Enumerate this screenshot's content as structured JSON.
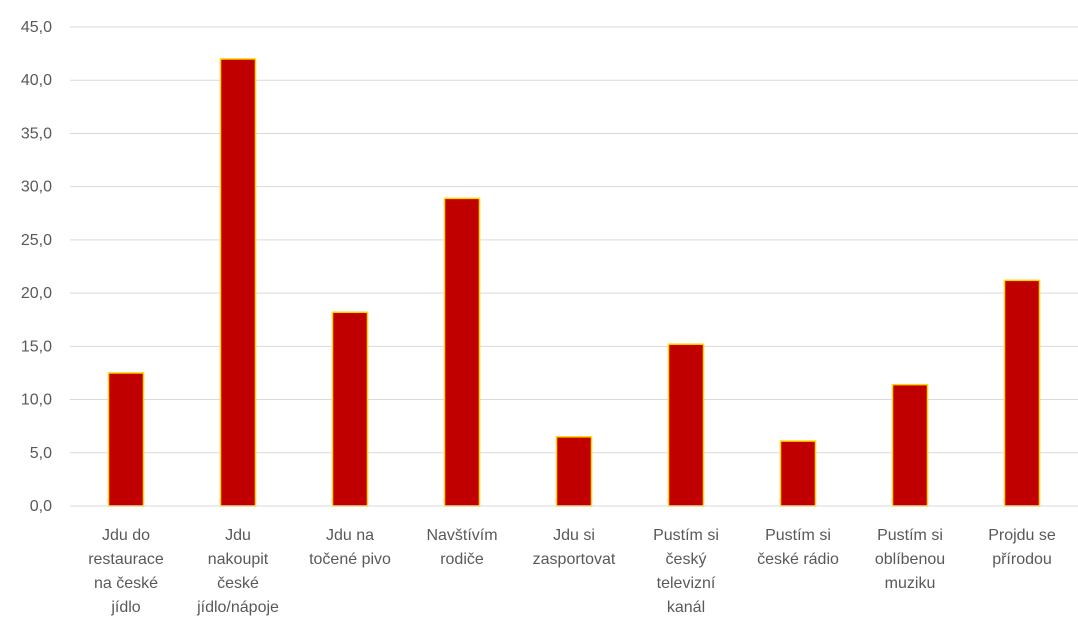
{
  "chart_data": {
    "type": "bar",
    "title": "",
    "xlabel": "",
    "ylabel": "",
    "ylim": [
      0,
      45
    ],
    "yticks": [
      "0,0",
      "5,0",
      "10,0",
      "15,0",
      "20,0",
      "25,0",
      "30,0",
      "35,0",
      "40,0",
      "45,0"
    ],
    "grid": true,
    "legend": "none",
    "bar_color": "#C00000",
    "bar_edge_color": "#FFD700",
    "categories": [
      [
        "Jdu do",
        "restaurace",
        "na české",
        "jídlo"
      ],
      [
        "Jdu",
        "nakoupit",
        "české",
        "jídlo/nápoje"
      ],
      [
        "Jdu na",
        "točené pivo"
      ],
      [
        "Navštívím",
        "rodiče"
      ],
      [
        "Jdu si",
        "zasportovat"
      ],
      [
        "Pustím si",
        "český",
        "televizní",
        "kanál"
      ],
      [
        "Pustím si",
        "české rádio"
      ],
      [
        "Pustím si",
        "oblíbenou",
        "muziku"
      ],
      [
        "Projdu se",
        "přírodou"
      ]
    ],
    "values": [
      12.5,
      42.0,
      18.2,
      28.9,
      6.5,
      15.2,
      6.1,
      11.4,
      21.2
    ]
  }
}
